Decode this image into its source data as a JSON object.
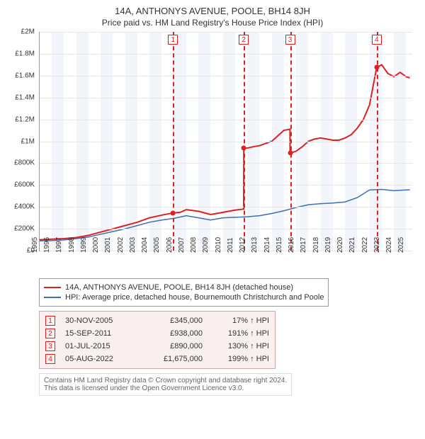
{
  "title": "14A, ANTHONYS AVENUE, POOLE, BH14 8JH",
  "subtitle": "Price paid vs. HM Land Registry's House Price Index (HPI)",
  "chart": {
    "type": "line",
    "x_range": [
      1995,
      2025.5
    ],
    "y_range": [
      0,
      2000000
    ],
    "y_ticks": [
      0,
      200000,
      400000,
      600000,
      800000,
      1000000,
      1200000,
      1400000,
      1600000,
      1800000,
      2000000
    ],
    "y_tick_labels": [
      "£0",
      "£200K",
      "£400K",
      "£600K",
      "£800K",
      "£1M",
      "£1.2M",
      "£1.4M",
      "£1.6M",
      "£1.8M",
      "£2M"
    ],
    "x_ticks": [
      1995,
      1996,
      1997,
      1998,
      1999,
      2000,
      2001,
      2002,
      2003,
      2004,
      2005,
      2006,
      2007,
      2008,
      2009,
      2010,
      2011,
      2012,
      2013,
      2014,
      2015,
      2016,
      2017,
      2018,
      2019,
      2020,
      2021,
      2022,
      2023,
      2024,
      2025
    ],
    "alt_band_color": "#f2f6fb",
    "grid_color": "#e6e6e6",
    "background_color": "#ffffff",
    "series": {
      "price_paid": {
        "color": "#e02020",
        "width": 2,
        "points": [
          [
            1995.0,
            100000
          ],
          [
            1996.0,
            105000
          ],
          [
            1997.0,
            110000
          ],
          [
            1998.0,
            120000
          ],
          [
            1999.0,
            140000
          ],
          [
            2000.0,
            170000
          ],
          [
            2001.0,
            200000
          ],
          [
            2002.0,
            230000
          ],
          [
            2003.0,
            260000
          ],
          [
            2004.0,
            300000
          ],
          [
            2005.0,
            325000
          ],
          [
            2005.92,
            345000
          ],
          [
            2006.5,
            350000
          ],
          [
            2007.0,
            375000
          ],
          [
            2008.0,
            360000
          ],
          [
            2009.0,
            330000
          ],
          [
            2010.0,
            350000
          ],
          [
            2011.0,
            370000
          ],
          [
            2011.7,
            380000
          ],
          [
            2011.71,
            938000
          ],
          [
            2012.0,
            938000
          ],
          [
            2012.5,
            950000
          ],
          [
            2013.0,
            960000
          ],
          [
            2013.5,
            980000
          ],
          [
            2014.0,
            1000000
          ],
          [
            2014.5,
            1050000
          ],
          [
            2015.0,
            1100000
          ],
          [
            2015.49,
            1110000
          ],
          [
            2015.5,
            890000
          ],
          [
            2016.0,
            910000
          ],
          [
            2016.5,
            950000
          ],
          [
            2017.0,
            1000000
          ],
          [
            2017.5,
            1020000
          ],
          [
            2018.0,
            1030000
          ],
          [
            2018.5,
            1020000
          ],
          [
            2019.0,
            1010000
          ],
          [
            2019.5,
            1010000
          ],
          [
            2020.0,
            1030000
          ],
          [
            2020.5,
            1060000
          ],
          [
            2021.0,
            1120000
          ],
          [
            2021.5,
            1200000
          ],
          [
            2022.0,
            1330000
          ],
          [
            2022.59,
            1675000
          ],
          [
            2023.0,
            1700000
          ],
          [
            2023.5,
            1620000
          ],
          [
            2024.0,
            1590000
          ],
          [
            2024.5,
            1630000
          ],
          [
            2025.0,
            1590000
          ],
          [
            2025.3,
            1580000
          ]
        ]
      },
      "hpi": {
        "color": "#3b6fb6",
        "width": 1.5,
        "points": [
          [
            1995.0,
            90000
          ],
          [
            1996.0,
            92000
          ],
          [
            1997.0,
            98000
          ],
          [
            1998.0,
            110000
          ],
          [
            1999.0,
            125000
          ],
          [
            2000.0,
            150000
          ],
          [
            2001.0,
            175000
          ],
          [
            2002.0,
            200000
          ],
          [
            2003.0,
            230000
          ],
          [
            2004.0,
            260000
          ],
          [
            2005.0,
            280000
          ],
          [
            2006.0,
            295000
          ],
          [
            2007.0,
            320000
          ],
          [
            2008.0,
            300000
          ],
          [
            2009.0,
            280000
          ],
          [
            2010.0,
            300000
          ],
          [
            2011.0,
            305000
          ],
          [
            2012.0,
            310000
          ],
          [
            2013.0,
            320000
          ],
          [
            2014.0,
            340000
          ],
          [
            2015.0,
            365000
          ],
          [
            2016.0,
            395000
          ],
          [
            2017.0,
            420000
          ],
          [
            2018.0,
            430000
          ],
          [
            2019.0,
            435000
          ],
          [
            2020.0,
            445000
          ],
          [
            2021.0,
            485000
          ],
          [
            2022.0,
            555000
          ],
          [
            2023.0,
            560000
          ],
          [
            2024.0,
            548000
          ],
          [
            2025.0,
            555000
          ],
          [
            2025.3,
            555000
          ]
        ]
      }
    },
    "markers": [
      {
        "n": "1",
        "x": 2005.92,
        "y": 345000
      },
      {
        "n": "2",
        "x": 2011.71,
        "y": 938000
      },
      {
        "n": "3",
        "x": 2015.5,
        "y": 890000
      },
      {
        "n": "4",
        "x": 2022.59,
        "y": 1675000
      }
    ]
  },
  "legend": {
    "rows": [
      {
        "color": "#e02020",
        "label": "14A, ANTHONYS AVENUE, POOLE, BH14 8JH (detached house)"
      },
      {
        "color": "#3b6fb6",
        "label": "HPI: Average price, detached house, Bournemouth Christchurch and Poole"
      }
    ]
  },
  "transactions": [
    {
      "n": "1",
      "date": "30-NOV-2005",
      "price": "£345,000",
      "delta": "17% ↑ HPI"
    },
    {
      "n": "2",
      "date": "15-SEP-2011",
      "price": "£938,000",
      "delta": "191% ↑ HPI"
    },
    {
      "n": "3",
      "date": "01-JUL-2015",
      "price": "£890,000",
      "delta": "130% ↑ HPI"
    },
    {
      "n": "4",
      "date": "05-AUG-2022",
      "price": "£1,675,000",
      "delta": "199% ↑ HPI"
    }
  ],
  "attribution": {
    "l1": "Contains HM Land Registry data © Crown copyright and database right 2024.",
    "l2": "This data is licensed under the Open Government Licence v3.0."
  }
}
